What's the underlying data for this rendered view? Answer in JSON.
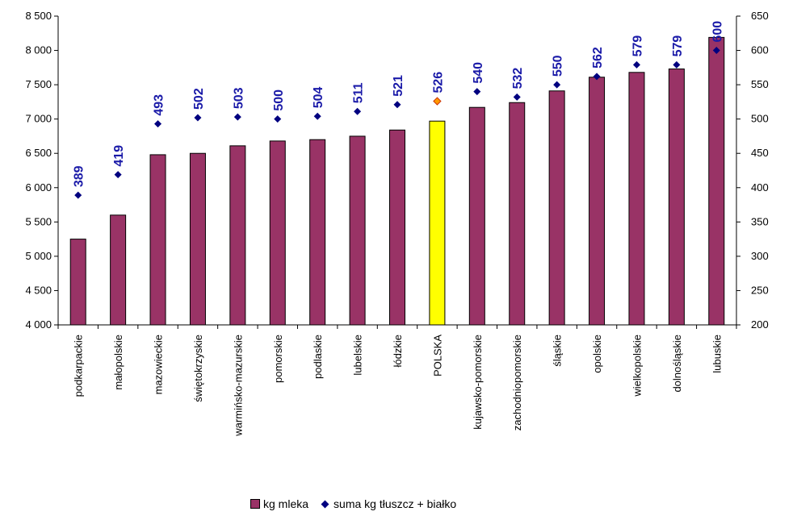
{
  "chart_data": {
    "type": "bar",
    "categories": [
      "podkarpackie",
      "małopolskie",
      "mazowieckie",
      "świętokrzyskie",
      "warmińsko-mazurskie",
      "pomorskie",
      "podlaskie",
      "lubelskie",
      "łódzkie",
      "POLSKA",
      "kujawsko-pomorskie",
      "zachodniopomorskie",
      "śląskie",
      "opolskie",
      "wielkopolskie",
      "dolnośląskie",
      "lubuskie"
    ],
    "highlight_index": 9,
    "series": [
      {
        "name": "kg mleka",
        "axis": "left",
        "type": "bar",
        "color": "#993366",
        "highlight_color": "#ffff00",
        "values": [
          5250,
          5600,
          6480,
          6500,
          6610,
          6680,
          6700,
          6750,
          6840,
          6970,
          7170,
          7240,
          7410,
          7610,
          7680,
          7730,
          8190
        ]
      },
      {
        "name": "suma kg tłuszcz + białko",
        "axis": "right",
        "type": "scatter",
        "color": "#000080",
        "highlight_color": "#ff9900",
        "values": [
          389,
          419,
          493,
          502,
          503,
          500,
          504,
          511,
          521,
          526,
          540,
          532,
          550,
          562,
          579,
          579,
          600
        ],
        "data_labels": [
          "389",
          "419",
          "493",
          "502",
          "503",
          "500",
          "504",
          "511",
          "521",
          "526",
          "540",
          "532",
          "550",
          "562",
          "579",
          "579",
          "600"
        ]
      }
    ],
    "y_left": {
      "lim": [
        4000,
        8500
      ],
      "ticks": [
        "4 000",
        "4 500",
        "5 000",
        "5 500",
        "6 000",
        "6 500",
        "7 000",
        "7 500",
        "8 000",
        "8 500"
      ],
      "tick_values": [
        4000,
        4500,
        5000,
        5500,
        6000,
        6500,
        7000,
        7500,
        8000,
        8500
      ]
    },
    "y_right": {
      "lim": [
        200,
        650
      ],
      "ticks": [
        "200",
        "250",
        "300",
        "350",
        "400",
        "450",
        "500",
        "550",
        "600",
        "650"
      ],
      "tick_values": [
        200,
        250,
        300,
        350,
        400,
        450,
        500,
        550,
        600,
        650
      ]
    },
    "grid": false,
    "legend_position": "bottom"
  }
}
